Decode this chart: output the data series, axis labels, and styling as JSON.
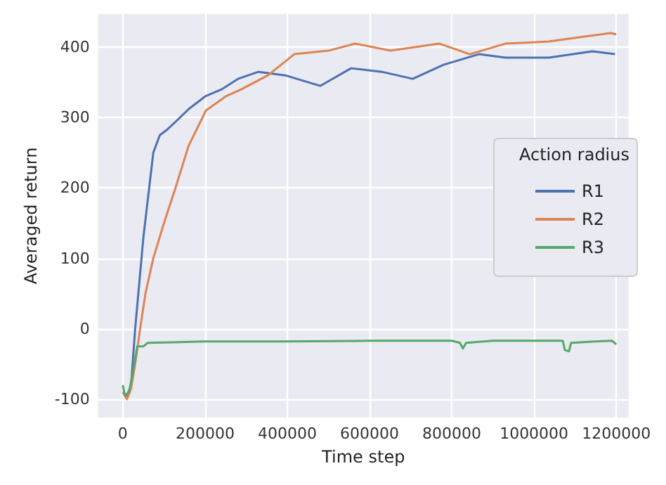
{
  "chart_data": {
    "type": "line",
    "xlabel": "Time step",
    "ylabel": "Averaged return",
    "legend_title": "Action radius",
    "legend": "right",
    "grid": true,
    "xlim": [
      -60000,
      1230000
    ],
    "xticks": [
      0,
      200000,
      400000,
      600000,
      800000,
      1000000,
      1200000
    ],
    "ylim": [
      -126,
      447
    ],
    "yticks": [
      -100,
      0,
      100,
      200,
      300,
      400
    ],
    "series": [
      {
        "name": "R1",
        "color": "#4c72b0",
        "x": [
          0,
          10000,
          20000,
          30000,
          50000,
          74000,
          90000,
          106000,
          130000,
          160000,
          200000,
          240000,
          280000,
          330000,
          395000,
          440000,
          480000,
          555000,
          630000,
          705000,
          780000,
          866000,
          930000,
          1036000,
          1142000,
          1197000
        ],
        "values": [
          -90,
          -95,
          -80,
          0,
          130,
          250,
          275,
          282,
          295,
          312,
          330,
          340,
          355,
          365,
          360,
          352,
          345,
          370,
          365,
          355,
          375,
          390,
          385,
          385,
          394,
          390
        ]
      },
      {
        "name": "R2",
        "color": "#dd8452",
        "x": [
          0,
          10000,
          20000,
          30000,
          42000,
          55000,
          74000,
          100000,
          128000,
          160000,
          202000,
          250000,
          288000,
          353000,
          417000,
          500000,
          565000,
          651000,
          770000,
          844000,
          930000,
          1036000,
          1123000,
          1187000,
          1200000
        ],
        "values": [
          -90,
          -100,
          -85,
          -50,
          0,
          50,
          100,
          150,
          200,
          260,
          310,
          330,
          340,
          360,
          390,
          395,
          405,
          395,
          405,
          390,
          405,
          408,
          415,
          420,
          418
        ]
      },
      {
        "name": "R3",
        "color": "#55a868",
        "x": [
          0,
          5000,
          15000,
          25000,
          35000,
          50000,
          60000,
          200000,
          400000,
          600000,
          800000,
          820000,
          827000,
          835000,
          900000,
          1070000,
          1075000,
          1085000,
          1090000,
          1150000,
          1190000,
          1200000
        ],
        "values": [
          -80,
          -95,
          -90,
          -60,
          -25,
          -25,
          -20,
          -18,
          -18,
          -17,
          -17,
          -20,
          -28,
          -20,
          -17,
          -17,
          -30,
          -32,
          -20,
          -18,
          -17,
          -22
        ]
      }
    ]
  }
}
